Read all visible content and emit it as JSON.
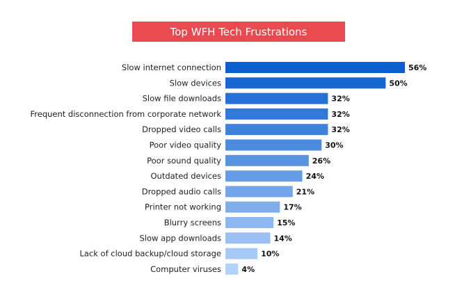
{
  "chart_data": {
    "type": "bar",
    "orientation": "horizontal",
    "title": "Top WFH Tech Frustrations",
    "categories": [
      "Slow internet connection",
      "Slow devices",
      "Slow file downloads",
      "Frequent disconnection from corporate network",
      "Dropped video calls",
      "Poor video quality",
      "Poor sound quality",
      "Outdated devices",
      "Dropped audio calls",
      "Printer not working",
      "Blurry screens",
      "Slow app downloads",
      "Lack of cloud backup/cloud storage",
      "Computer viruses"
    ],
    "values": [
      56,
      50,
      32,
      32,
      32,
      30,
      26,
      24,
      21,
      17,
      15,
      14,
      10,
      4
    ],
    "value_labels": [
      "56%",
      "50%",
      "32%",
      "32%",
      "32%",
      "30%",
      "26%",
      "24%",
      "21%",
      "17%",
      "15%",
      "14%",
      "10%",
      "4%"
    ],
    "xlim": [
      0,
      56
    ],
    "grid": false,
    "legend": "none"
  },
  "colors": {
    "title_background": "#e84a4f",
    "bar_darkest": "#0a5ecf",
    "bar_lightest": "#b4d2f8"
  }
}
